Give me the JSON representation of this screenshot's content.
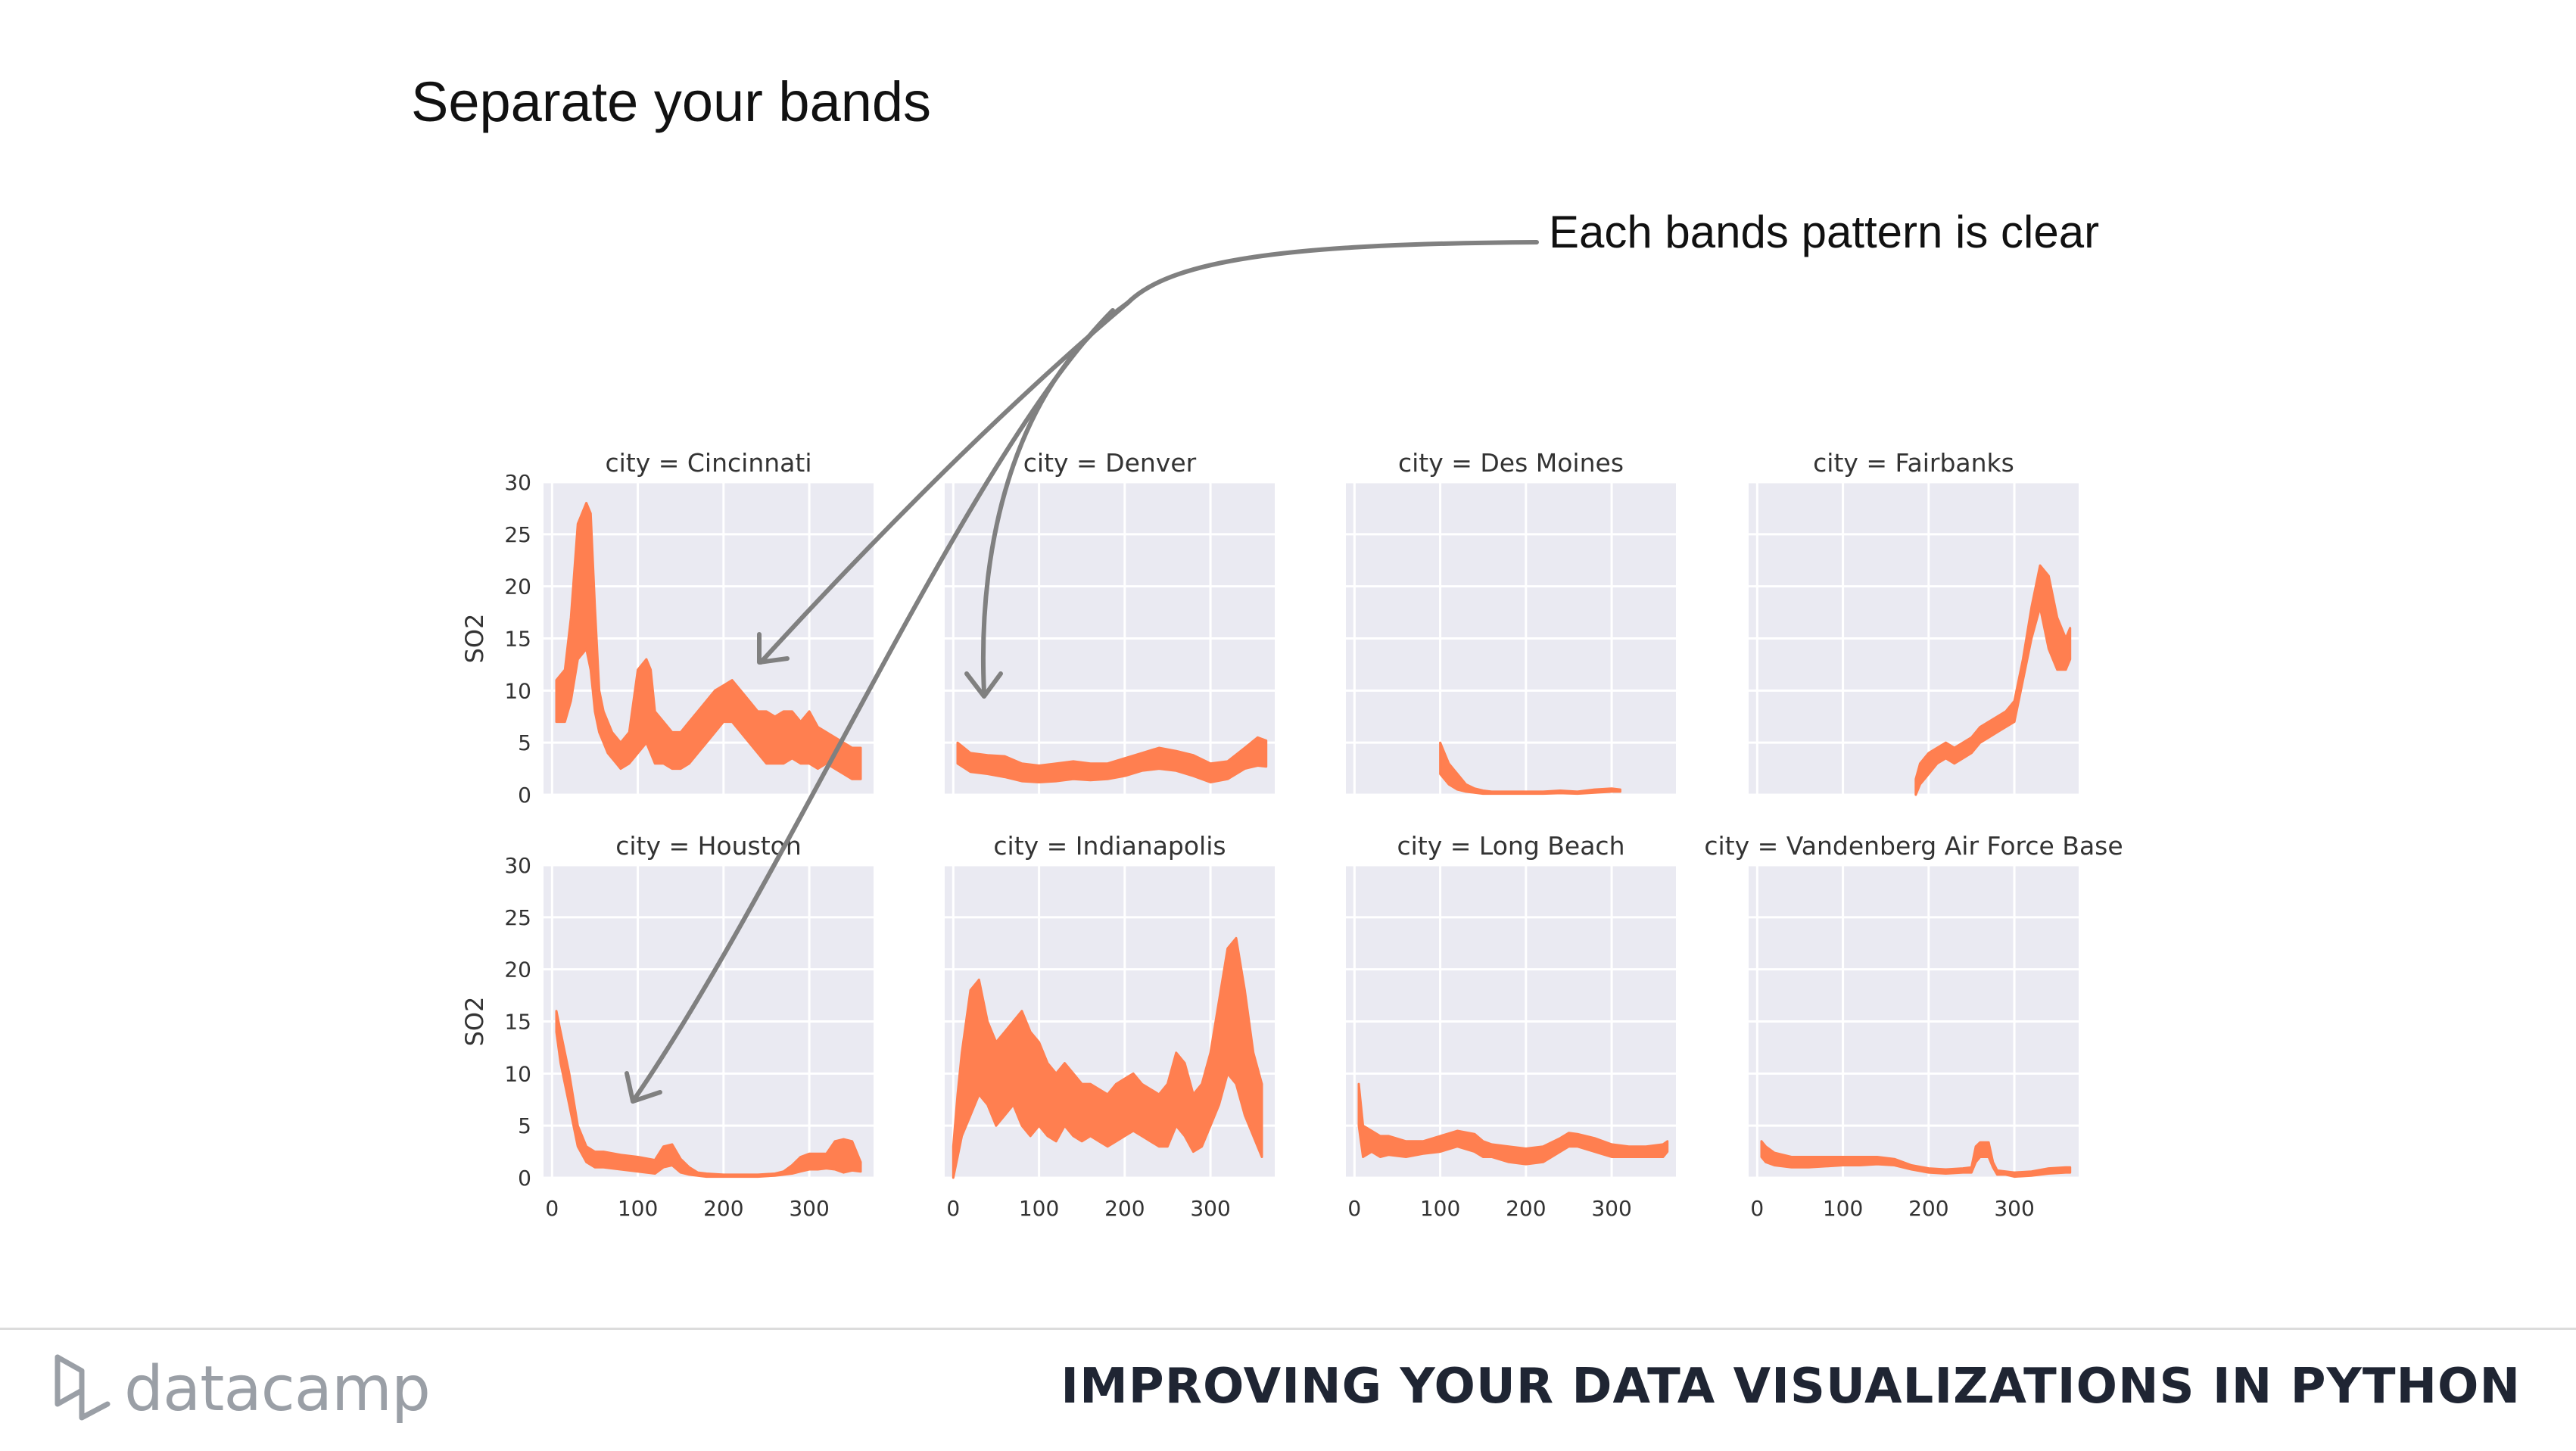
{
  "slide": {
    "title": "Separate your bands",
    "callout": "Each bands pattern is clear"
  },
  "footer": {
    "brand": "datacamp",
    "course_title": "IMPROVING YOUR DATA VISUALIZATIONS IN PYTHON"
  },
  "colors": {
    "band": "#ff7f50",
    "panel_bg": "#eaeaf2",
    "grid": "#ffffff",
    "arrow": "#808080",
    "text": "#333333"
  },
  "chart_data": {
    "type": "area",
    "layout": "facet-grid 2x4",
    "ylabel": "SO2",
    "ylim": [
      0,
      30
    ],
    "xlim": [
      -10,
      375
    ],
    "yticks": [
      0,
      5,
      10,
      15,
      20,
      25,
      30
    ],
    "xticks": [
      0,
      100,
      200,
      300
    ],
    "grid": true,
    "panels": [
      {
        "title": "city = Cincinnati",
        "x": [
          5,
          15,
          22,
          30,
          40,
          45,
          50,
          55,
          60,
          65,
          70,
          75,
          80,
          90,
          100,
          110,
          115,
          120,
          130,
          140,
          150,
          160,
          170,
          180,
          190,
          200,
          210,
          220,
          230,
          240,
          250,
          260,
          270,
          280,
          290,
          300,
          310,
          320,
          330,
          340,
          350,
          360
        ],
        "lo": [
          7,
          7,
          9,
          13,
          14,
          12,
          8,
          6,
          5,
          4,
          3.5,
          3,
          2.5,
          3,
          4,
          5,
          4,
          3,
          3,
          2.5,
          2.5,
          3,
          4,
          5,
          6,
          7,
          7,
          6,
          5,
          4,
          3,
          3,
          3,
          3.5,
          3,
          3,
          2.5,
          3,
          2.5,
          2,
          1.5,
          1.5
        ],
        "hi": [
          11,
          12,
          17,
          26,
          28,
          27,
          18,
          10,
          8,
          7,
          6,
          5.5,
          5,
          6,
          12,
          13,
          12,
          8,
          7,
          6,
          6,
          7,
          8,
          9,
          10,
          10.5,
          11,
          10,
          9,
          8,
          8,
          7.5,
          8,
          8,
          7,
          8,
          6.5,
          6,
          5.5,
          5,
          4.5,
          4.5
        ]
      },
      {
        "title": "city = Denver",
        "x": [
          5,
          20,
          40,
          60,
          80,
          100,
          120,
          140,
          160,
          180,
          200,
          220,
          240,
          260,
          280,
          300,
          320,
          340,
          355,
          365
        ],
        "lo": [
          3,
          2.2,
          2,
          1.7,
          1.3,
          1.2,
          1.3,
          1.5,
          1.4,
          1.5,
          1.8,
          2.3,
          2.5,
          2.3,
          1.8,
          1.2,
          1.5,
          2.5,
          2.8,
          2.7
        ],
        "hi": [
          5,
          4,
          3.8,
          3.7,
          3,
          2.8,
          3,
          3.2,
          3,
          3,
          3.5,
          4,
          4.5,
          4.2,
          3.8,
          3,
          3.2,
          4.5,
          5.5,
          5.2
        ]
      },
      {
        "title": "city = Des Moines",
        "x": [
          100,
          105,
          110,
          120,
          130,
          140,
          150,
          160,
          180,
          200,
          220,
          240,
          260,
          280,
          300,
          310
        ],
        "lo": [
          2,
          1.5,
          1,
          0.5,
          0.3,
          0.2,
          0.1,
          0.1,
          0.1,
          0.1,
          0.1,
          0.15,
          0.1,
          0.2,
          0.3,
          0.3
        ],
        "hi": [
          5,
          4,
          3,
          2,
          1,
          0.6,
          0.4,
          0.3,
          0.3,
          0.3,
          0.3,
          0.4,
          0.3,
          0.5,
          0.6,
          0.5
        ]
      },
      {
        "title": "city = Fairbanks",
        "x": [
          185,
          190,
          200,
          210,
          220,
          230,
          240,
          250,
          260,
          270,
          280,
          290,
          300,
          310,
          320,
          330,
          340,
          350,
          360,
          365
        ],
        "lo": [
          0,
          1,
          2,
          3,
          3.5,
          3,
          3.5,
          4,
          5,
          5.5,
          6,
          6.5,
          7,
          11,
          15,
          18,
          14,
          12,
          12,
          13
        ],
        "hi": [
          1.5,
          3,
          4,
          4.5,
          5,
          4.5,
          5,
          5.5,
          6.5,
          7,
          7.5,
          8,
          9,
          13,
          18,
          22,
          21,
          17,
          15,
          16
        ]
      },
      {
        "title": "city = Houston",
        "x": [
          5,
          10,
          20,
          30,
          40,
          50,
          60,
          80,
          100,
          120,
          130,
          140,
          150,
          160,
          170,
          180,
          200,
          220,
          240,
          260,
          270,
          280,
          290,
          300,
          310,
          320,
          330,
          340,
          350,
          360
        ],
        "lo": [
          14,
          11,
          7,
          3,
          1.5,
          1,
          1,
          0.8,
          0.6,
          0.4,
          1,
          1.2,
          0.5,
          0.3,
          0.2,
          0.1,
          0.1,
          0.1,
          0.1,
          0.2,
          0.3,
          0.4,
          0.6,
          0.8,
          0.8,
          0.9,
          0.8,
          0.5,
          0.7,
          0.6
        ],
        "hi": [
          16,
          14,
          10,
          5,
          3,
          2.5,
          2.5,
          2.2,
          2,
          1.7,
          3,
          3.2,
          1.8,
          1,
          0.5,
          0.4,
          0.3,
          0.3,
          0.3,
          0.4,
          0.6,
          1.2,
          2,
          2.3,
          2.3,
          2.3,
          3.5,
          3.7,
          3.5,
          1.5
        ]
      },
      {
        "title": "city = Indianapolis",
        "x": [
          0,
          5,
          10,
          20,
          30,
          40,
          50,
          60,
          70,
          80,
          90,
          100,
          110,
          120,
          130,
          140,
          150,
          160,
          170,
          180,
          190,
          200,
          210,
          220,
          230,
          240,
          250,
          260,
          270,
          280,
          290,
          300,
          310,
          320,
          330,
          340,
          350,
          360
        ],
        "lo": [
          0,
          2,
          4,
          6,
          8,
          7,
          5,
          6,
          7,
          5,
          4,
          5,
          4,
          3.5,
          5,
          4,
          3.5,
          4,
          3.5,
          3,
          3.5,
          4,
          4.5,
          4,
          3.5,
          3,
          3,
          5,
          4,
          2.5,
          3,
          5,
          7,
          10,
          9,
          6,
          4,
          2
        ],
        "hi": [
          3,
          8,
          12,
          18,
          19,
          15,
          13,
          14,
          15,
          16,
          14,
          13,
          11,
          10,
          11,
          10,
          9,
          9,
          8.5,
          8,
          9,
          9.5,
          10,
          9,
          8.5,
          8,
          9,
          12,
          11,
          8,
          9,
          12,
          17,
          22,
          23,
          18,
          12,
          9
        ]
      },
      {
        "title": "city = Long Beach",
        "x": [
          5,
          10,
          20,
          30,
          40,
          60,
          80,
          100,
          120,
          140,
          150,
          160,
          180,
          200,
          220,
          240,
          250,
          260,
          280,
          300,
          320,
          340,
          360,
          365
        ],
        "lo": [
          5,
          2,
          2.5,
          2,
          2.2,
          2,
          2.3,
          2.5,
          3,
          2.5,
          2,
          2,
          1.5,
          1.3,
          1.5,
          2.5,
          3,
          3,
          2.5,
          2,
          2,
          2,
          2,
          2.5
        ],
        "hi": [
          9,
          5,
          4.5,
          4,
          4,
          3.5,
          3.5,
          4,
          4.5,
          4.2,
          3.5,
          3.2,
          3,
          2.8,
          3,
          3.8,
          4.3,
          4.2,
          3.8,
          3.2,
          3,
          3,
          3.2,
          3.5
        ]
      },
      {
        "title": "city = Vandenberg Air Force Base",
        "x": [
          5,
          10,
          20,
          40,
          60,
          80,
          100,
          120,
          140,
          160,
          180,
          200,
          220,
          240,
          250,
          255,
          260,
          270,
          275,
          280,
          290,
          300,
          320,
          340,
          360,
          365
        ],
        "lo": [
          2,
          1.5,
          1.2,
          1,
          1,
          1.1,
          1.2,
          1.2,
          1.3,
          1.2,
          0.8,
          0.5,
          0.4,
          0.5,
          0.5,
          1.5,
          2,
          2,
          1,
          0.3,
          0.3,
          0.1,
          0.2,
          0.4,
          0.5,
          0.5
        ],
        "hi": [
          3.5,
          3,
          2.4,
          2,
          2,
          2,
          2,
          2,
          2,
          1.8,
          1.2,
          0.9,
          0.8,
          0.9,
          1,
          3,
          3.4,
          3.4,
          1.5,
          0.7,
          0.6,
          0.5,
          0.6,
          0.9,
          1,
          1
        ]
      }
    ]
  }
}
